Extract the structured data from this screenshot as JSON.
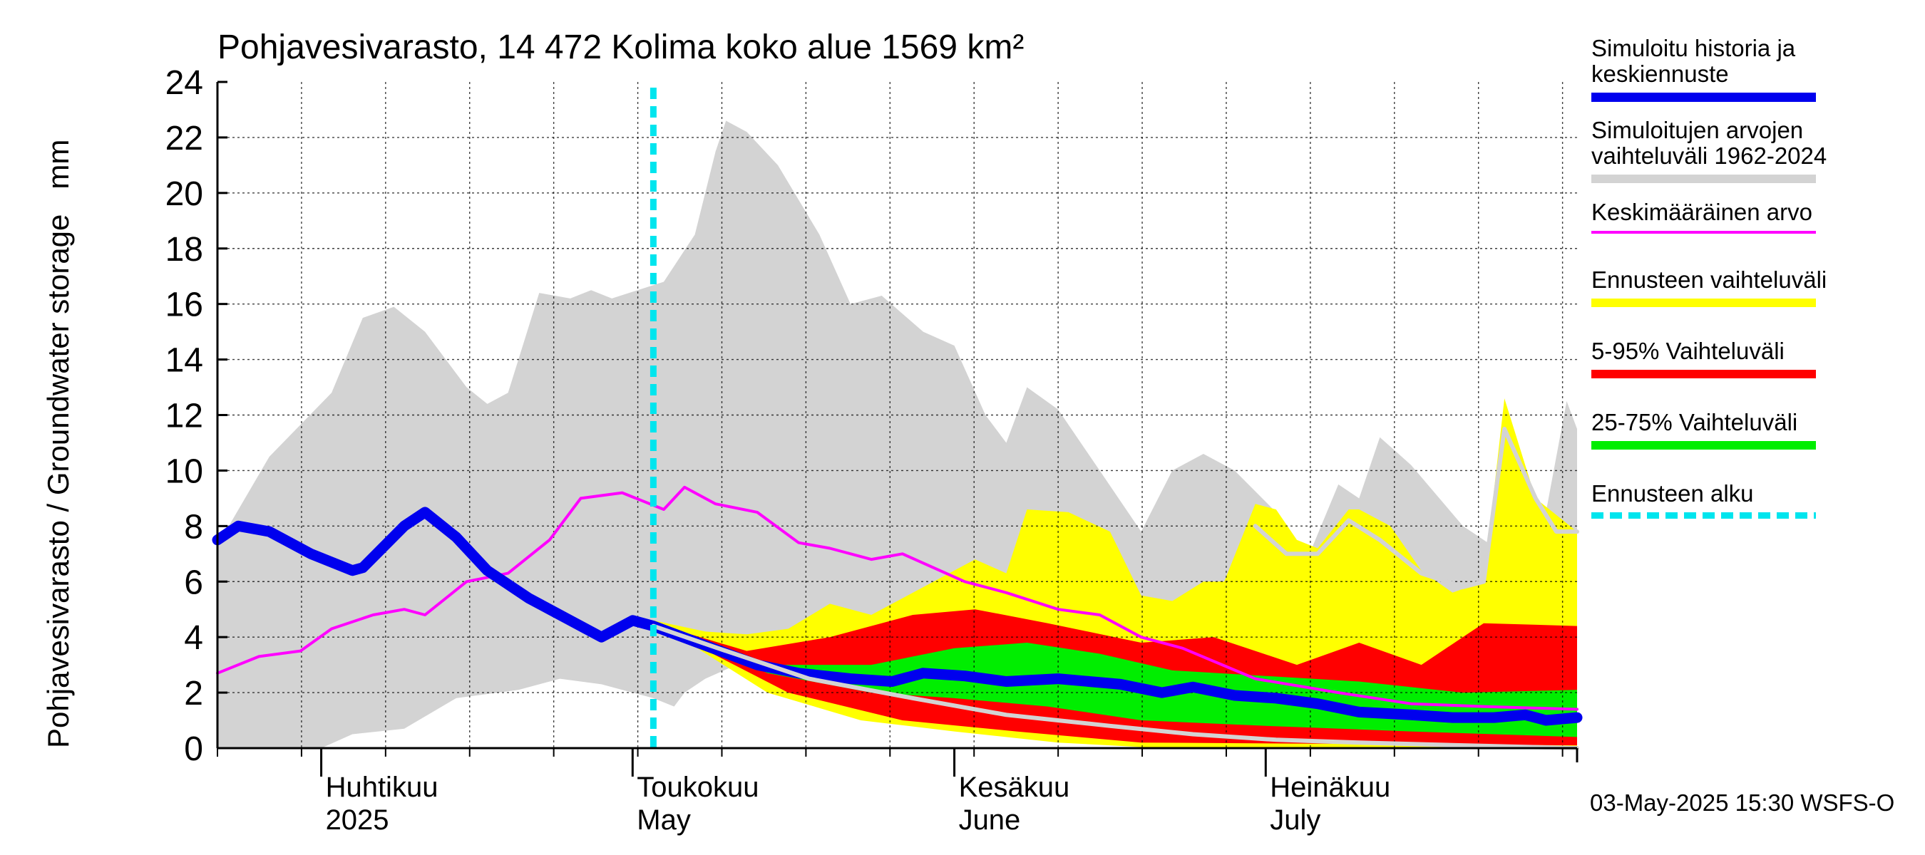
{
  "chart_data": {
    "type": "area",
    "title": "Pohjavesivarasto, 14 472 Kolima koko alue 1569 km²",
    "ylabel": "Pohjavesivarasto / Groundwater storage   mm",
    "ylim": [
      0,
      24
    ],
    "yticks": [
      "0",
      "2",
      "4",
      "6",
      "8",
      "10",
      "12",
      "14",
      "16",
      "18",
      "20",
      "22",
      "24"
    ],
    "x_range": [
      "2025-03-22",
      "2025-07-31"
    ],
    "month_labels": [
      {
        "fi": "Huhtikuu",
        "en": "2025",
        "date": "2025-04-01"
      },
      {
        "fi": "Toukokuu",
        "en": "May",
        "date": "2025-05-01"
      },
      {
        "fi": "Kesäkuu",
        "en": "June",
        "date": "2025-06-01"
      },
      {
        "fi": "Heinäkuu",
        "en": "July",
        "date": "2025-07-01"
      }
    ],
    "forecast_start": "2025-05-03",
    "grid": true,
    "legend_position": "right",
    "series": [
      {
        "name": "Simuloitujen arvojen vaihteluväli 1962-2024",
        "kind": "band",
        "color": "#d3d3d3",
        "upper": [
          [
            "2025-03-22",
            7.3
          ],
          [
            "2025-03-27",
            10.5
          ],
          [
            "2025-04-02",
            12.8
          ],
          [
            "2025-04-05",
            15.5
          ],
          [
            "2025-04-08",
            15.9
          ],
          [
            "2025-04-11",
            15.0
          ],
          [
            "2025-04-15",
            13.0
          ],
          [
            "2025-04-17",
            12.4
          ],
          [
            "2025-04-19",
            12.8
          ],
          [
            "2025-04-22",
            16.4
          ],
          [
            "2025-04-25",
            16.2
          ],
          [
            "2025-04-27",
            16.5
          ],
          [
            "2025-04-29",
            16.2
          ],
          [
            "2025-05-04",
            16.8
          ],
          [
            "2025-05-07",
            18.5
          ],
          [
            "2025-05-09",
            21.5
          ],
          [
            "2025-05-10",
            22.6
          ],
          [
            "2025-05-12",
            22.2
          ],
          [
            "2025-05-15",
            21.0
          ],
          [
            "2025-05-19",
            18.5
          ],
          [
            "2025-05-22",
            16.0
          ],
          [
            "2025-05-25",
            16.3
          ],
          [
            "2025-05-29",
            15.0
          ],
          [
            "2025-06-01",
            14.5
          ],
          [
            "2025-06-04",
            12.0
          ],
          [
            "2025-06-06",
            11.0
          ],
          [
            "2025-06-08",
            13.0
          ],
          [
            "2025-06-11",
            12.2
          ],
          [
            "2025-06-15",
            10.0
          ],
          [
            "2025-06-19",
            7.8
          ],
          [
            "2025-06-22",
            10.0
          ],
          [
            "2025-06-25",
            10.6
          ],
          [
            "2025-06-28",
            10.0
          ],
          [
            "2025-07-02",
            8.5
          ],
          [
            "2025-07-05",
            6.8
          ],
          [
            "2025-07-08",
            9.5
          ],
          [
            "2025-07-10",
            9.0
          ],
          [
            "2025-07-12",
            11.2
          ],
          [
            "2025-07-15",
            10.2
          ],
          [
            "2025-07-20",
            8.0
          ],
          [
            "2025-07-24",
            7.0
          ],
          [
            "2025-07-27",
            6.5
          ],
          [
            "2025-07-30",
            12.5
          ],
          [
            "2025-07-31",
            11.5
          ]
        ],
        "lower": [
          [
            "2025-03-22",
            0.0
          ],
          [
            "2025-04-01",
            0.0
          ],
          [
            "2025-04-04",
            0.5
          ],
          [
            "2025-04-09",
            0.7
          ],
          [
            "2025-04-14",
            1.8
          ],
          [
            "2025-04-20",
            2.1
          ],
          [
            "2025-04-24",
            2.5
          ],
          [
            "2025-04-28",
            2.3
          ],
          [
            "2025-05-03",
            1.8
          ],
          [
            "2025-05-05",
            1.5
          ],
          [
            "2025-05-06",
            2.0
          ],
          [
            "2025-05-08",
            2.5
          ],
          [
            "2025-05-11",
            3.0
          ],
          [
            "2025-05-13",
            3.5
          ],
          [
            "2025-05-15",
            4.0
          ],
          [
            "2025-05-31",
            2.5
          ],
          [
            "2025-06-15",
            1.0
          ],
          [
            "2025-07-31",
            0.0
          ]
        ]
      },
      {
        "name": "Ennusteen vaihteluväli",
        "kind": "band",
        "color": "#ffff00",
        "upper": [
          [
            "2025-05-03",
            4.6
          ],
          [
            "2025-05-08",
            4.2
          ],
          [
            "2025-05-12",
            4.1
          ],
          [
            "2025-05-16",
            4.3
          ],
          [
            "2025-05-20",
            5.2
          ],
          [
            "2025-05-24",
            4.8
          ],
          [
            "2025-05-30",
            6.0
          ],
          [
            "2025-06-03",
            6.8
          ],
          [
            "2025-06-06",
            6.3
          ],
          [
            "2025-06-08",
            8.6
          ],
          [
            "2025-06-12",
            8.5
          ],
          [
            "2025-06-16",
            7.8
          ],
          [
            "2025-06-19",
            5.5
          ],
          [
            "2025-06-22",
            5.3
          ],
          [
            "2025-06-25",
            6.0
          ],
          [
            "2025-06-27",
            6.0
          ],
          [
            "2025-06-30",
            8.8
          ],
          [
            "2025-07-02",
            8.6
          ],
          [
            "2025-07-04",
            7.5
          ],
          [
            "2025-07-06",
            7.2
          ],
          [
            "2025-07-09",
            8.6
          ],
          [
            "2025-07-10",
            8.6
          ],
          [
            "2025-07-13",
            8.0
          ],
          [
            "2025-07-16",
            6.4
          ],
          [
            "2025-07-19",
            5.6
          ],
          [
            "2025-07-22",
            6.0
          ],
          [
            "2025-07-24",
            12.6
          ],
          [
            "2025-07-27",
            9.0
          ],
          [
            "2025-07-31",
            7.8
          ]
        ],
        "lower": [
          [
            "2025-05-03",
            4.6
          ],
          [
            "2025-05-14",
            2.0
          ],
          [
            "2025-05-23",
            1.0
          ],
          [
            "2025-06-01",
            0.6
          ],
          [
            "2025-06-11",
            0.2
          ],
          [
            "2025-06-21",
            0.0
          ],
          [
            "2025-07-31",
            0.0
          ]
        ]
      },
      {
        "name": "5-95% Vaihteluväli",
        "kind": "band",
        "color": "#ff0000",
        "upper": [
          [
            "2025-05-03",
            4.5
          ],
          [
            "2025-05-12",
            3.5
          ],
          [
            "2025-05-20",
            4.0
          ],
          [
            "2025-05-28",
            4.8
          ],
          [
            "2025-06-03",
            5.0
          ],
          [
            "2025-06-10",
            4.5
          ],
          [
            "2025-06-19",
            3.8
          ],
          [
            "2025-06-26",
            4.0
          ],
          [
            "2025-07-04",
            3.0
          ],
          [
            "2025-07-10",
            3.8
          ],
          [
            "2025-07-16",
            3.0
          ],
          [
            "2025-07-22",
            4.5
          ],
          [
            "2025-07-31",
            4.4
          ]
        ],
        "lower": [
          [
            "2025-05-03",
            4.5
          ],
          [
            "2025-05-16",
            2.0
          ],
          [
            "2025-05-27",
            1.0
          ],
          [
            "2025-06-07",
            0.6
          ],
          [
            "2025-06-19",
            0.2
          ],
          [
            "2025-07-31",
            0.1
          ]
        ]
      },
      {
        "name": "25-75% Vaihteluväli",
        "kind": "band",
        "color": "#00ee00",
        "upper": [
          [
            "2025-05-03",
            4.5
          ],
          [
            "2025-05-14",
            3.0
          ],
          [
            "2025-05-24",
            3.0
          ],
          [
            "2025-06-01",
            3.6
          ],
          [
            "2025-06-08",
            3.8
          ],
          [
            "2025-06-15",
            3.4
          ],
          [
            "2025-06-22",
            2.8
          ],
          [
            "2025-07-01",
            2.6
          ],
          [
            "2025-07-10",
            2.4
          ],
          [
            "2025-07-20",
            2.0
          ],
          [
            "2025-07-31",
            2.1
          ]
        ],
        "lower": [
          [
            "2025-05-03",
            4.5
          ],
          [
            "2025-05-14",
            2.7
          ],
          [
            "2025-05-24",
            2.0
          ],
          [
            "2025-06-01",
            1.8
          ],
          [
            "2025-06-10",
            1.5
          ],
          [
            "2025-06-19",
            1.0
          ],
          [
            "2025-07-01",
            0.8
          ],
          [
            "2025-07-15",
            0.6
          ],
          [
            "2025-07-31",
            0.4
          ]
        ]
      },
      {
        "name": "Keskimääräinen arvo",
        "kind": "line",
        "color": "#ff00ff",
        "points": [
          [
            "2025-03-22",
            2.7
          ],
          [
            "2025-03-26",
            3.3
          ],
          [
            "2025-03-30",
            3.5
          ],
          [
            "2025-04-02",
            4.3
          ],
          [
            "2025-04-06",
            4.8
          ],
          [
            "2025-04-09",
            5.0
          ],
          [
            "2025-04-11",
            4.8
          ],
          [
            "2025-04-15",
            6.0
          ],
          [
            "2025-04-19",
            6.3
          ],
          [
            "2025-04-23",
            7.5
          ],
          [
            "2025-04-26",
            9.0
          ],
          [
            "2025-04-30",
            9.2
          ],
          [
            "2025-05-04",
            8.6
          ],
          [
            "2025-05-06",
            9.4
          ],
          [
            "2025-05-09",
            8.8
          ],
          [
            "2025-05-13",
            8.5
          ],
          [
            "2025-05-17",
            7.4
          ],
          [
            "2025-05-20",
            7.2
          ],
          [
            "2025-05-24",
            6.8
          ],
          [
            "2025-05-27",
            7.0
          ],
          [
            "2025-06-02",
            6.0
          ],
          [
            "2025-06-06",
            5.6
          ],
          [
            "2025-06-11",
            5.0
          ],
          [
            "2025-06-15",
            4.8
          ],
          [
            "2025-06-19",
            4.0
          ],
          [
            "2025-06-23",
            3.6
          ],
          [
            "2025-06-30",
            2.5
          ],
          [
            "2025-07-08",
            2.0
          ],
          [
            "2025-07-15",
            1.6
          ],
          [
            "2025-07-22",
            1.5
          ],
          [
            "2025-07-31",
            1.4
          ]
        ]
      },
      {
        "name": "Simuloitu historia ja keskiennuste",
        "kind": "line",
        "color": "#0000ee",
        "points": [
          [
            "2025-03-22",
            7.5
          ],
          [
            "2025-03-24",
            8.0
          ],
          [
            "2025-03-27",
            7.8
          ],
          [
            "2025-03-31",
            7.0
          ],
          [
            "2025-04-04",
            6.4
          ],
          [
            "2025-04-05",
            6.5
          ],
          [
            "2025-04-09",
            8.0
          ],
          [
            "2025-04-11",
            8.5
          ],
          [
            "2025-04-14",
            7.6
          ],
          [
            "2025-04-17",
            6.4
          ],
          [
            "2025-04-21",
            5.4
          ],
          [
            "2025-04-25",
            4.6
          ],
          [
            "2025-04-28",
            4.0
          ],
          [
            "2025-05-01",
            4.6
          ],
          [
            "2025-05-03",
            4.4
          ],
          [
            "2025-05-08",
            3.7
          ],
          [
            "2025-05-13",
            3.0
          ],
          [
            "2025-05-17",
            2.7
          ],
          [
            "2025-05-22",
            2.5
          ],
          [
            "2025-05-26",
            2.4
          ],
          [
            "2025-05-29",
            2.7
          ],
          [
            "2025-06-02",
            2.6
          ],
          [
            "2025-06-06",
            2.4
          ],
          [
            "2025-06-11",
            2.5
          ],
          [
            "2025-06-17",
            2.3
          ],
          [
            "2025-06-21",
            2.0
          ],
          [
            "2025-06-24",
            2.2
          ],
          [
            "2025-06-28",
            1.9
          ],
          [
            "2025-07-02",
            1.8
          ],
          [
            "2025-07-06",
            1.6
          ],
          [
            "2025-07-10",
            1.3
          ],
          [
            "2025-07-15",
            1.2
          ],
          [
            "2025-07-19",
            1.1
          ],
          [
            "2025-07-23",
            1.1
          ],
          [
            "2025-07-26",
            1.2
          ],
          [
            "2025-07-28",
            1.0
          ],
          [
            "2025-07-31",
            1.1
          ]
        ]
      },
      {
        "name": "Simulated lower member",
        "kind": "line",
        "color": "#d3d3d3",
        "points": [
          [
            "2025-05-03",
            4.4
          ],
          [
            "2025-05-10",
            3.5
          ],
          [
            "2025-05-18",
            2.5
          ],
          [
            "2025-05-28",
            1.8
          ],
          [
            "2025-06-06",
            1.2
          ],
          [
            "2025-06-16",
            0.8
          ],
          [
            "2025-06-24",
            0.5
          ],
          [
            "2025-07-02",
            0.3
          ],
          [
            "2025-07-10",
            0.2
          ],
          [
            "2025-07-20",
            0.1
          ],
          [
            "2025-07-31",
            0.0
          ]
        ]
      },
      {
        "name": "Simulated upper member",
        "kind": "line",
        "color": "#d3d3d3",
        "points": [
          [
            "2025-06-30",
            8.0
          ],
          [
            "2025-07-03",
            7.0
          ],
          [
            "2025-07-06",
            7.0
          ],
          [
            "2025-07-09",
            8.2
          ],
          [
            "2025-07-12",
            7.5
          ],
          [
            "2025-07-16",
            6.3
          ],
          [
            "2025-07-20",
            5.8
          ],
          [
            "2025-07-22",
            6.0
          ],
          [
            "2025-07-24",
            11.5
          ],
          [
            "2025-07-27",
            9.0
          ],
          [
            "2025-07-29",
            7.8
          ],
          [
            "2025-07-31",
            7.8
          ]
        ]
      }
    ]
  },
  "legend": [
    {
      "label": "Simuloitu historia ja\nkeskiennuste",
      "color": "#0000ee",
      "style": "thick-line"
    },
    {
      "label": "Simuloitujen arvojen\nvaihteluväli 1962-2024",
      "color": "#d3d3d3",
      "style": "bar"
    },
    {
      "label": "Keskimääräinen arvo",
      "color": "#ff00ff",
      "style": "thin-line"
    },
    {
      "label": "Ennusteen vaihteluväli",
      "color": "#ffff00",
      "style": "bar"
    },
    {
      "label": "5-95% Vaihteluväli",
      "color": "#ff0000",
      "style": "bar"
    },
    {
      "label": "25-75% Vaihteluväli",
      "color": "#00ee00",
      "style": "bar"
    },
    {
      "label": "Ennusteen alku",
      "color": "#00e5ee",
      "style": "dashed"
    }
  ],
  "footer": "03-May-2025 15:30 WSFS-O"
}
